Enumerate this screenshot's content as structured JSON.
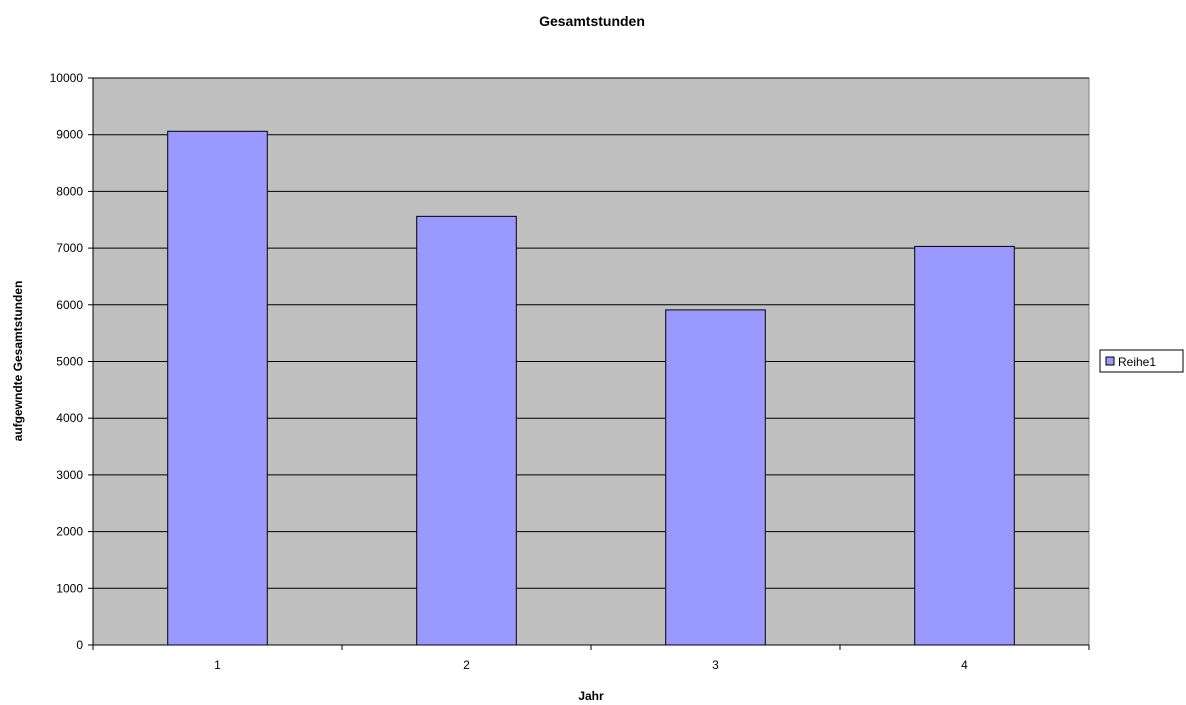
{
  "chart_data": {
    "type": "bar",
    "title": "Gesamtstunden",
    "xlabel": "Jahr",
    "ylabel": "aufgewndte Gesamtstunden",
    "categories": [
      "1",
      "2",
      "3",
      "4"
    ],
    "series": [
      {
        "name": "Reihe1",
        "values": [
          9060,
          7560,
          5910,
          7030
        ]
      }
    ],
    "ylim": [
      0,
      10000
    ],
    "yticks": [
      0,
      1000,
      2000,
      3000,
      4000,
      5000,
      6000,
      7000,
      8000,
      9000,
      10000
    ],
    "grid": true,
    "legend_position": "right",
    "colors": {
      "plot_background": "#c0c0c0",
      "bar_fill": "#9999ff",
      "bar_stroke": "#000000",
      "gridline": "#000000"
    }
  }
}
